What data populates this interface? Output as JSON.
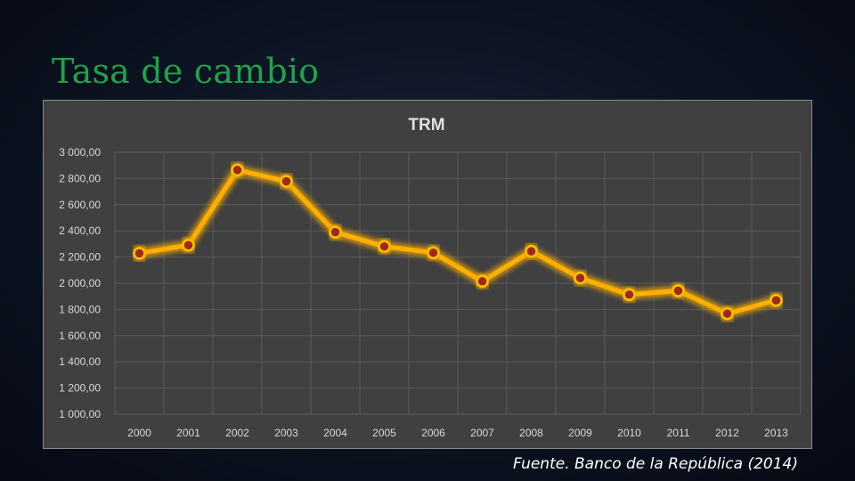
{
  "slide": {
    "title": "Tasa de cambio",
    "source": "Fuente. Banco de la República (2014)"
  },
  "colors": {
    "title": "#1fa34a",
    "panel_bg": "#404040",
    "gridline": "#5a5a5a",
    "line": "#ffc000",
    "glow": "#ffb000",
    "marker_fill": "#9c2a1c",
    "marker_stroke": "#ffc000",
    "tick_text": "#d9d9d9",
    "chart_title": "#e0e0e0"
  },
  "chart_data": {
    "type": "line",
    "title": "TRM",
    "xlabel": "",
    "ylabel": "",
    "x": [
      "2000",
      "2001",
      "2002",
      "2003",
      "2004",
      "2005",
      "2006",
      "2007",
      "2008",
      "2009",
      "2010",
      "2011",
      "2012",
      "2013"
    ],
    "series": [
      {
        "values": [
          2229,
          2291,
          2865,
          2778,
          2390,
          2281,
          2233,
          2015,
          2244,
          2040,
          1913,
          1943,
          1768,
          1870
        ]
      }
    ],
    "ylim": [
      1000,
      3000
    ],
    "yticks": [
      "1 000,00",
      "1 200,00",
      "1 400,00",
      "1 600,00",
      "1 800,00",
      "2 000,00",
      "2 200,00",
      "2 400,00",
      "2 600,00",
      "2 800,00",
      "3 000,00"
    ],
    "grid": true,
    "legend": "none"
  }
}
